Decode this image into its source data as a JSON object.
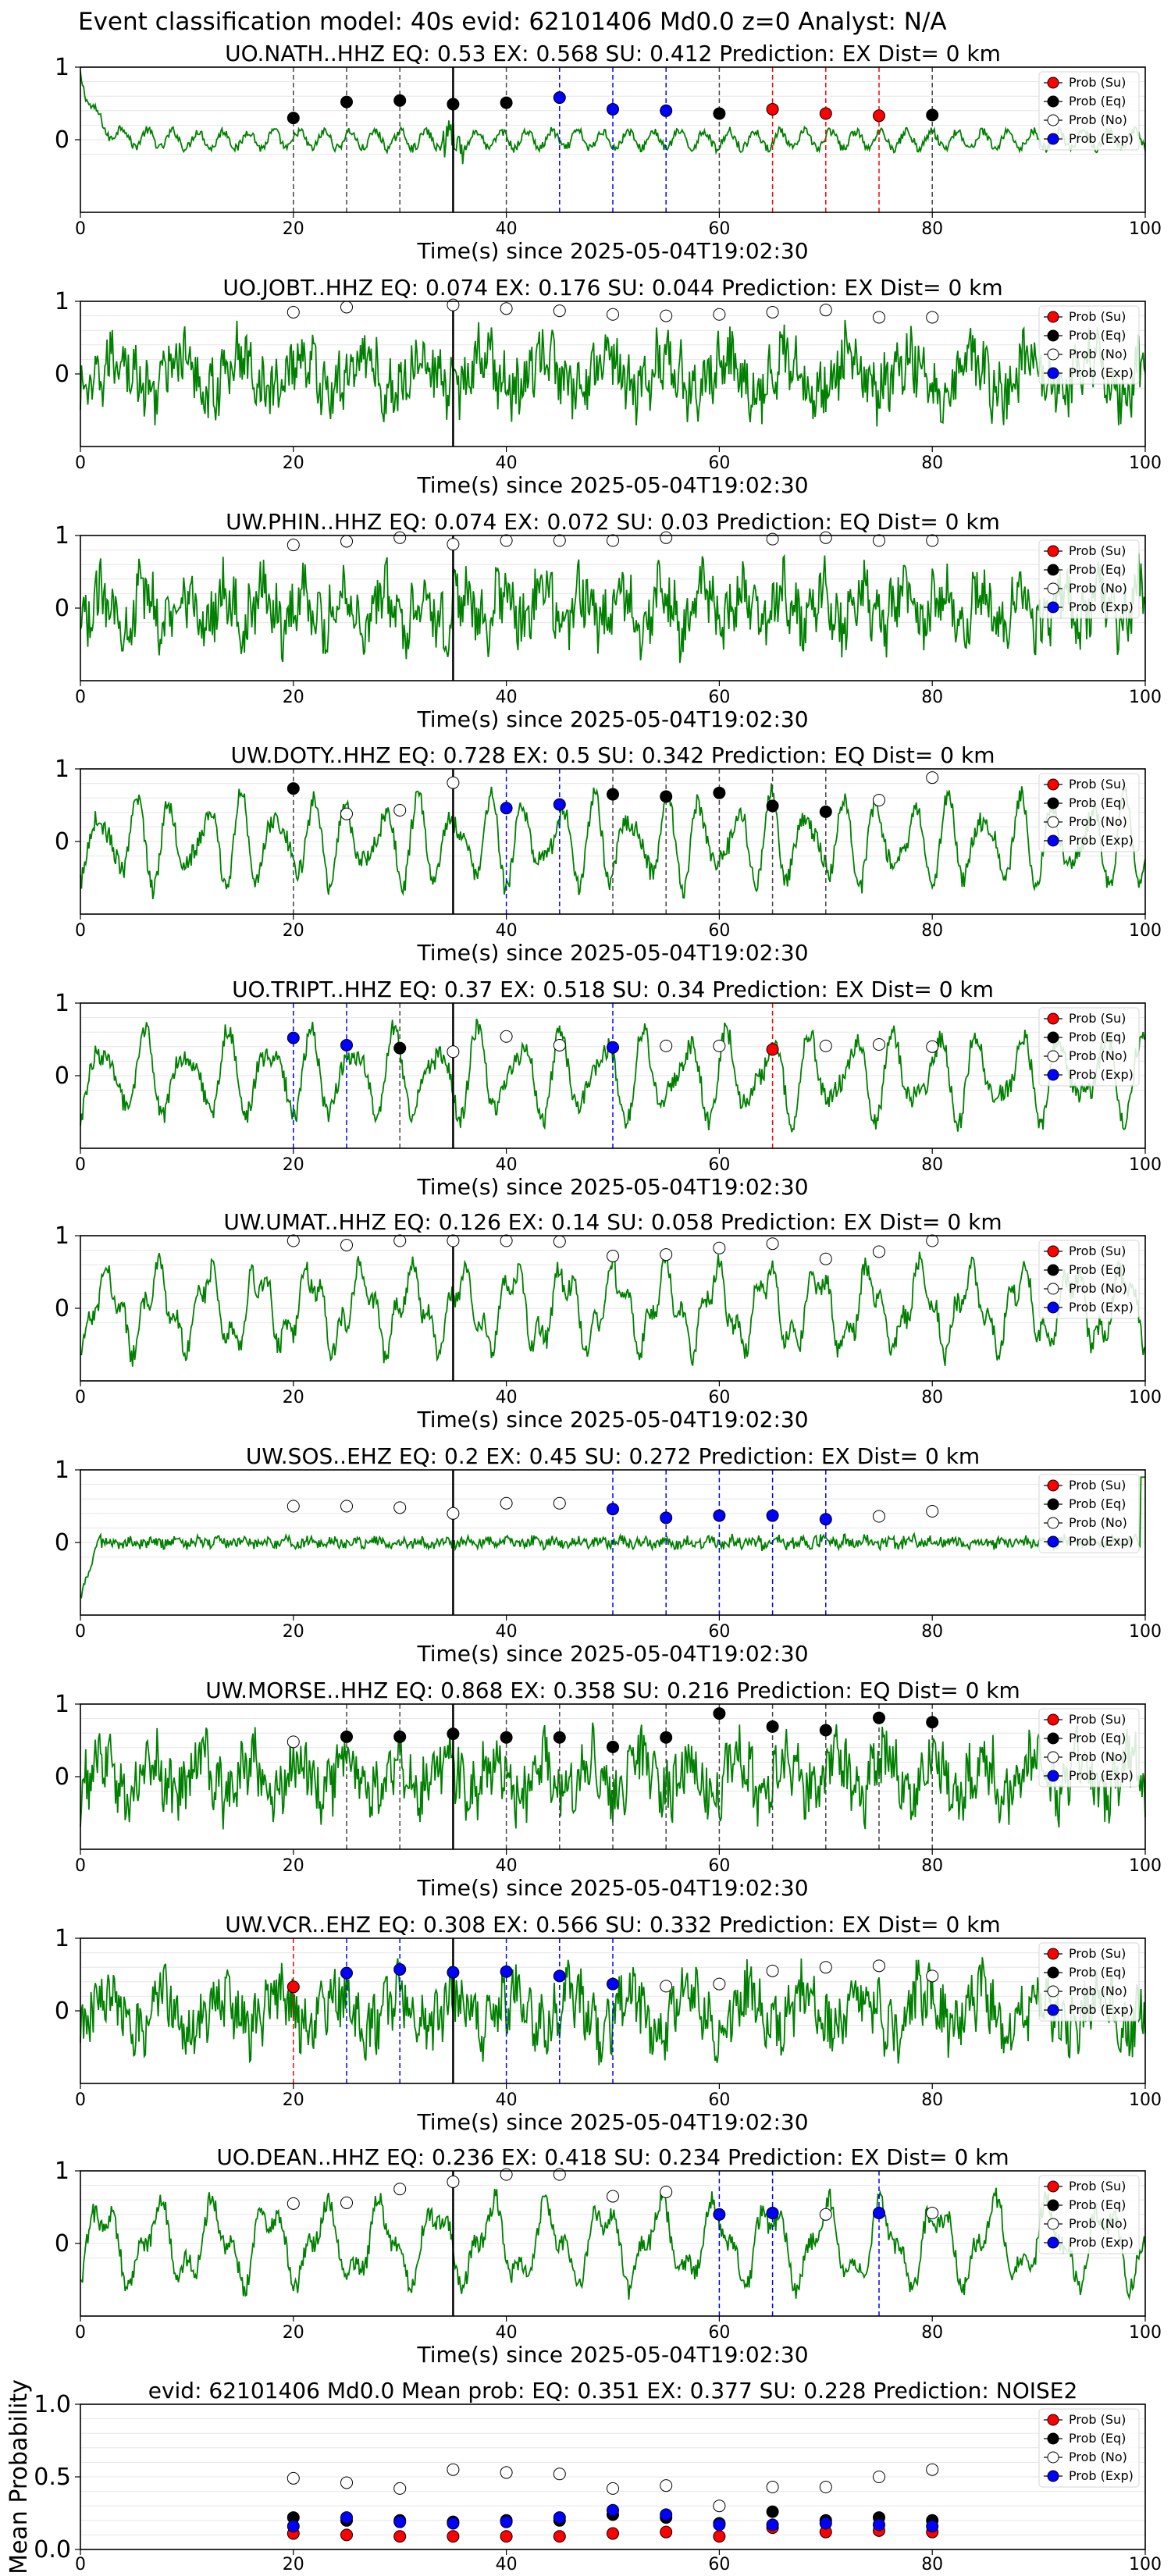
{
  "figure_title": "Event classification model: 40s evid: 62101406 Md0.0 z=0 Analyst: N/A",
  "colors": {
    "waveform": "#008000",
    "su": "#ff0000",
    "eq": "#000000",
    "no": "#ffffff",
    "exp": "#0000ff",
    "event_line": "#000000"
  },
  "legend_labels": [
    "Prob (Su)",
    "Prob (Eq)",
    "Prob (No)",
    "Prob (Exp)"
  ],
  "chart_data": [
    {
      "type": "line",
      "station": "UO.NATH..HHZ",
      "title": "UO.NATH..HHZ   EQ: 0.53  EX: 0.568  SU: 0.412   Prediction: EX    Dist= 0 km",
      "xlabel": "Time(s) since 2025-05-04T19:02:30",
      "xlim": [
        0,
        100
      ],
      "ylim": [
        -1,
        1
      ],
      "xticks": [
        0,
        20,
        40,
        60,
        80,
        100
      ],
      "yticks": [
        0,
        1
      ],
      "event_time": 35,
      "style": "decay",
      "windows": [
        {
          "t": 20,
          "c": "eq",
          "p": 0.3
        },
        {
          "t": 25,
          "c": "eq",
          "p": 0.52
        },
        {
          "t": 30,
          "c": "eq",
          "p": 0.54
        },
        {
          "t": 35,
          "c": "eq",
          "p": 0.49
        },
        {
          "t": 40,
          "c": "eq",
          "p": 0.51
        },
        {
          "t": 45,
          "c": "exp",
          "p": 0.58
        },
        {
          "t": 50,
          "c": "exp",
          "p": 0.42
        },
        {
          "t": 55,
          "c": "exp",
          "p": 0.4
        },
        {
          "t": 60,
          "c": "eq",
          "p": 0.36
        },
        {
          "t": 65,
          "c": "su",
          "p": 0.42
        },
        {
          "t": 70,
          "c": "su",
          "p": 0.36
        },
        {
          "t": 75,
          "c": "su",
          "p": 0.33
        },
        {
          "t": 80,
          "c": "eq",
          "p": 0.34
        }
      ]
    },
    {
      "type": "line",
      "station": "UO.JOBT..HHZ",
      "title": "UO.JOBT..HHZ   EQ: 0.074  EX: 0.176  SU: 0.044   Prediction: EX    Dist= 0 km",
      "xlabel": "Time(s) since 2025-05-04T19:02:30",
      "xlim": [
        0,
        100
      ],
      "ylim": [
        -1,
        1
      ],
      "xticks": [
        0,
        20,
        40,
        60,
        80,
        100
      ],
      "yticks": [
        0,
        1
      ],
      "event_time": 35,
      "style": "noisy",
      "windows": [
        {
          "t": 20,
          "c": "no",
          "p": 0.85
        },
        {
          "t": 25,
          "c": "no",
          "p": 0.92
        },
        {
          "t": 35,
          "c": "no",
          "p": 0.95
        },
        {
          "t": 40,
          "c": "no",
          "p": 0.9
        },
        {
          "t": 45,
          "c": "no",
          "p": 0.87
        },
        {
          "t": 50,
          "c": "no",
          "p": 0.82
        },
        {
          "t": 55,
          "c": "no",
          "p": 0.8
        },
        {
          "t": 60,
          "c": "no",
          "p": 0.82
        },
        {
          "t": 65,
          "c": "no",
          "p": 0.85
        },
        {
          "t": 70,
          "c": "no",
          "p": 0.88
        },
        {
          "t": 75,
          "c": "no",
          "p": 0.78
        },
        {
          "t": 80,
          "c": "no",
          "p": 0.78
        }
      ]
    },
    {
      "type": "line",
      "station": "UW.PHIN..HHZ",
      "title": "UW.PHIN..HHZ   EQ: 0.074  EX: 0.072  SU: 0.03   Prediction: EQ    Dist= 0 km",
      "xlabel": "Time(s) since 2025-05-04T19:02:30",
      "xlim": [
        0,
        100
      ],
      "ylim": [
        -1,
        1
      ],
      "xticks": [
        0,
        20,
        40,
        60,
        80,
        100
      ],
      "yticks": [
        0,
        1
      ],
      "event_time": 35,
      "style": "noisy",
      "windows": [
        {
          "t": 20,
          "c": "no",
          "p": 0.87
        },
        {
          "t": 25,
          "c": "no",
          "p": 0.92
        },
        {
          "t": 30,
          "c": "no",
          "p": 0.97
        },
        {
          "t": 35,
          "c": "no",
          "p": 0.88
        },
        {
          "t": 40,
          "c": "no",
          "p": 0.93
        },
        {
          "t": 45,
          "c": "no",
          "p": 0.93
        },
        {
          "t": 50,
          "c": "no",
          "p": 0.93
        },
        {
          "t": 55,
          "c": "no",
          "p": 0.97
        },
        {
          "t": 65,
          "c": "no",
          "p": 0.95
        },
        {
          "t": 70,
          "c": "no",
          "p": 0.97
        },
        {
          "t": 75,
          "c": "no",
          "p": 0.93
        },
        {
          "t": 80,
          "c": "no",
          "p": 0.93
        }
      ]
    },
    {
      "type": "line",
      "station": "UW.DOTY..HHZ",
      "title": "UW.DOTY..HHZ   EQ: 0.728  EX: 0.5  SU: 0.342   Prediction: EQ    Dist= 0 km",
      "xlabel": "Time(s) since 2025-05-04T19:02:30",
      "xlim": [
        0,
        100
      ],
      "ylim": [
        -1,
        1
      ],
      "xticks": [
        0,
        20,
        40,
        60,
        80,
        100
      ],
      "yticks": [
        0,
        1
      ],
      "event_time": 35,
      "style": "osc",
      "windows": [
        {
          "t": 20,
          "c": "eq",
          "p": 0.73
        },
        {
          "t": 25,
          "c": "no",
          "p": 0.38
        },
        {
          "t": 30,
          "c": "no",
          "p": 0.43
        },
        {
          "t": 35,
          "c": "no",
          "p": 0.81
        },
        {
          "t": 40,
          "c": "exp",
          "p": 0.46
        },
        {
          "t": 45,
          "c": "exp",
          "p": 0.51
        },
        {
          "t": 50,
          "c": "eq",
          "p": 0.65
        },
        {
          "t": 55,
          "c": "eq",
          "p": 0.62
        },
        {
          "t": 60,
          "c": "eq",
          "p": 0.67
        },
        {
          "t": 65,
          "c": "eq",
          "p": 0.49
        },
        {
          "t": 70,
          "c": "eq",
          "p": 0.41
        },
        {
          "t": 75,
          "c": "no",
          "p": 0.57
        },
        {
          "t": 80,
          "c": "no",
          "p": 0.88
        }
      ]
    },
    {
      "type": "line",
      "station": "UO.TRIPT..HHZ",
      "title": "UO.TRIPT..HHZ   EQ: 0.37  EX: 0.518  SU: 0.34   Prediction: EX    Dist= 0 km",
      "xlabel": "Time(s) since 2025-05-04T19:02:30",
      "xlim": [
        0,
        100
      ],
      "ylim": [
        -1,
        1
      ],
      "xticks": [
        0,
        20,
        40,
        60,
        80,
        100
      ],
      "yticks": [
        0,
        1
      ],
      "event_time": 35,
      "style": "osc",
      "windows": [
        {
          "t": 20,
          "c": "exp",
          "p": 0.52
        },
        {
          "t": 25,
          "c": "exp",
          "p": 0.42
        },
        {
          "t": 30,
          "c": "eq",
          "p": 0.38
        },
        {
          "t": 35,
          "c": "no",
          "p": 0.33
        },
        {
          "t": 40,
          "c": "no",
          "p": 0.54
        },
        {
          "t": 45,
          "c": "no",
          "p": 0.42
        },
        {
          "t": 50,
          "c": "exp",
          "p": 0.39
        },
        {
          "t": 55,
          "c": "no",
          "p": 0.41
        },
        {
          "t": 60,
          "c": "no",
          "p": 0.41
        },
        {
          "t": 65,
          "c": "su",
          "p": 0.36
        },
        {
          "t": 70,
          "c": "no",
          "p": 0.41
        },
        {
          "t": 75,
          "c": "no",
          "p": 0.43
        },
        {
          "t": 80,
          "c": "no",
          "p": 0.4
        }
      ]
    },
    {
      "type": "line",
      "station": "UW.UMAT..HHZ",
      "title": "UW.UMAT..HHZ   EQ: 0.126  EX: 0.14  SU: 0.058   Prediction: EX    Dist= 0 km",
      "xlabel": "Time(s) since 2025-05-04T19:02:30",
      "xlim": [
        0,
        100
      ],
      "ylim": [
        -1,
        1
      ],
      "xticks": [
        0,
        20,
        40,
        60,
        80,
        100
      ],
      "yticks": [
        0,
        1
      ],
      "event_time": 35,
      "style": "osc",
      "windows": [
        {
          "t": 20,
          "c": "no",
          "p": 0.93
        },
        {
          "t": 25,
          "c": "no",
          "p": 0.87
        },
        {
          "t": 30,
          "c": "no",
          "p": 0.93
        },
        {
          "t": 35,
          "c": "no",
          "p": 0.93
        },
        {
          "t": 40,
          "c": "no",
          "p": 0.93
        },
        {
          "t": 45,
          "c": "no",
          "p": 0.92
        },
        {
          "t": 50,
          "c": "no",
          "p": 0.72
        },
        {
          "t": 55,
          "c": "no",
          "p": 0.74
        },
        {
          "t": 60,
          "c": "no",
          "p": 0.83
        },
        {
          "t": 65,
          "c": "no",
          "p": 0.89
        },
        {
          "t": 70,
          "c": "no",
          "p": 0.68
        },
        {
          "t": 75,
          "c": "no",
          "p": 0.78
        },
        {
          "t": 80,
          "c": "no",
          "p": 0.93
        }
      ]
    },
    {
      "type": "line",
      "station": "UW.SOS..EHZ",
      "title": "UW.SOS..EHZ   EQ: 0.2  EX: 0.45  SU: 0.272   Prediction: EX    Dist= 0 km",
      "xlabel": "Time(s) since 2025-05-04T19:02:30",
      "xlim": [
        0,
        100
      ],
      "ylim": [
        -1,
        1
      ],
      "xticks": [
        0,
        20,
        40,
        60,
        80,
        100
      ],
      "yticks": [
        0,
        1
      ],
      "event_time": 35,
      "style": "flat",
      "windows": [
        {
          "t": 20,
          "c": "no",
          "p": 0.5
        },
        {
          "t": 25,
          "c": "no",
          "p": 0.5
        },
        {
          "t": 30,
          "c": "no",
          "p": 0.48
        },
        {
          "t": 35,
          "c": "no",
          "p": 0.4
        },
        {
          "t": 40,
          "c": "no",
          "p": 0.54
        },
        {
          "t": 45,
          "c": "no",
          "p": 0.54
        },
        {
          "t": 50,
          "c": "exp",
          "p": 0.46
        },
        {
          "t": 55,
          "c": "exp",
          "p": 0.34
        },
        {
          "t": 60,
          "c": "exp",
          "p": 0.37
        },
        {
          "t": 65,
          "c": "exp",
          "p": 0.37
        },
        {
          "t": 70,
          "c": "exp",
          "p": 0.32
        },
        {
          "t": 75,
          "c": "no",
          "p": 0.36
        },
        {
          "t": 80,
          "c": "no",
          "p": 0.43
        }
      ]
    },
    {
      "type": "line",
      "station": "UW.MORSE..HHZ",
      "title": "UW.MORSE..HHZ   EQ: 0.868  EX: 0.358  SU: 0.216   Prediction: EQ    Dist= 0 km",
      "xlabel": "Time(s) since 2025-05-04T19:02:30",
      "xlim": [
        0,
        100
      ],
      "ylim": [
        -1,
        1
      ],
      "xticks": [
        0,
        20,
        40,
        60,
        80,
        100
      ],
      "yticks": [
        0,
        1
      ],
      "event_time": 35,
      "style": "noisy",
      "windows": [
        {
          "t": 20,
          "c": "no",
          "p": 0.48
        },
        {
          "t": 25,
          "c": "eq",
          "p": 0.55
        },
        {
          "t": 30,
          "c": "eq",
          "p": 0.55
        },
        {
          "t": 35,
          "c": "eq",
          "p": 0.59
        },
        {
          "t": 40,
          "c": "eq",
          "p": 0.54
        },
        {
          "t": 45,
          "c": "eq",
          "p": 0.54
        },
        {
          "t": 50,
          "c": "eq",
          "p": 0.41
        },
        {
          "t": 55,
          "c": "eq",
          "p": 0.54
        },
        {
          "t": 60,
          "c": "eq",
          "p": 0.87
        },
        {
          "t": 65,
          "c": "eq",
          "p": 0.69
        },
        {
          "t": 70,
          "c": "eq",
          "p": 0.64
        },
        {
          "t": 75,
          "c": "eq",
          "p": 0.81
        },
        {
          "t": 80,
          "c": "eq",
          "p": 0.75
        }
      ]
    },
    {
      "type": "line",
      "station": "UW.VCR..EHZ",
      "title": "UW.VCR..EHZ   EQ: 0.308  EX: 0.566  SU: 0.332   Prediction: EX    Dist= 0 km",
      "xlabel": "Time(s) since 2025-05-04T19:02:30",
      "xlim": [
        0,
        100
      ],
      "ylim": [
        -1,
        1
      ],
      "xticks": [
        0,
        20,
        40,
        60,
        80,
        100
      ],
      "yticks": [
        0,
        1
      ],
      "event_time": 35,
      "style": "noisy",
      "windows": [
        {
          "t": 20,
          "c": "su",
          "p": 0.33
        },
        {
          "t": 25,
          "c": "exp",
          "p": 0.52
        },
        {
          "t": 30,
          "c": "exp",
          "p": 0.57
        },
        {
          "t": 35,
          "c": "exp",
          "p": 0.53
        },
        {
          "t": 40,
          "c": "exp",
          "p": 0.54
        },
        {
          "t": 45,
          "c": "exp",
          "p": 0.48
        },
        {
          "t": 50,
          "c": "exp",
          "p": 0.37
        },
        {
          "t": 55,
          "c": "no",
          "p": 0.34
        },
        {
          "t": 60,
          "c": "no",
          "p": 0.37
        },
        {
          "t": 65,
          "c": "no",
          "p": 0.55
        },
        {
          "t": 70,
          "c": "no",
          "p": 0.6
        },
        {
          "t": 75,
          "c": "no",
          "p": 0.62
        },
        {
          "t": 80,
          "c": "no",
          "p": 0.48
        }
      ]
    },
    {
      "type": "line",
      "station": "UO.DEAN..HHZ",
      "title": "UO.DEAN..HHZ   EQ: 0.236  EX: 0.418  SU: 0.234   Prediction: EX    Dist= 0 km",
      "xlabel": "Time(s) since 2025-05-04T19:02:30",
      "xlim": [
        0,
        100
      ],
      "ylim": [
        -1,
        1
      ],
      "xticks": [
        0,
        20,
        40,
        60,
        80,
        100
      ],
      "yticks": [
        0,
        1
      ],
      "event_time": 35,
      "style": "osc",
      "windows": [
        {
          "t": 20,
          "c": "no",
          "p": 0.55
        },
        {
          "t": 25,
          "c": "no",
          "p": 0.56
        },
        {
          "t": 30,
          "c": "no",
          "p": 0.75
        },
        {
          "t": 35,
          "c": "no",
          "p": 0.85
        },
        {
          "t": 40,
          "c": "no",
          "p": 0.95
        },
        {
          "t": 45,
          "c": "no",
          "p": 0.95
        },
        {
          "t": 50,
          "c": "no",
          "p": 0.65
        },
        {
          "t": 55,
          "c": "no",
          "p": 0.71
        },
        {
          "t": 60,
          "c": "exp",
          "p": 0.4
        },
        {
          "t": 65,
          "c": "exp",
          "p": 0.42
        },
        {
          "t": 70,
          "c": "no",
          "p": 0.4
        },
        {
          "t": 75,
          "c": "exp",
          "p": 0.42
        },
        {
          "t": 80,
          "c": "no",
          "p": 0.42
        }
      ]
    },
    {
      "type": "scatter",
      "title": "evid: 62101406  Md0.0   Mean prob:   EQ: 0.351  EX: 0.377  SU: 0.228   Prediction: NOISE2",
      "ylabel": "Mean Probability",
      "xlim": [
        0,
        100
      ],
      "ylim": [
        0,
        1
      ],
      "xticks": [
        0,
        20,
        40,
        60,
        80,
        100
      ],
      "yticks": [
        0.0,
        0.5,
        1.0
      ],
      "x": [
        20,
        25,
        30,
        35,
        40,
        45,
        50,
        55,
        60,
        65,
        70,
        75,
        80
      ],
      "series": [
        {
          "name": "Prob (Su)",
          "c": "su",
          "values": [
            0.11,
            0.1,
            0.09,
            0.09,
            0.09,
            0.09,
            0.11,
            0.12,
            0.09,
            0.15,
            0.12,
            0.13,
            0.12
          ]
        },
        {
          "name": "Prob (Eq)",
          "c": "eq",
          "values": [
            0.22,
            0.2,
            0.2,
            0.19,
            0.2,
            0.2,
            0.24,
            0.22,
            0.18,
            0.26,
            0.2,
            0.22,
            0.2
          ]
        },
        {
          "name": "Prob (No)",
          "c": "no",
          "values": [
            0.49,
            0.46,
            0.42,
            0.55,
            0.53,
            0.52,
            0.42,
            0.44,
            0.3,
            0.43,
            0.43,
            0.5,
            0.55
          ]
        },
        {
          "name": "Prob (Exp)",
          "c": "exp",
          "values": [
            0.16,
            0.22,
            0.19,
            0.18,
            0.19,
            0.22,
            0.27,
            0.24,
            0.17,
            0.17,
            0.18,
            0.17,
            0.16
          ]
        }
      ]
    }
  ]
}
